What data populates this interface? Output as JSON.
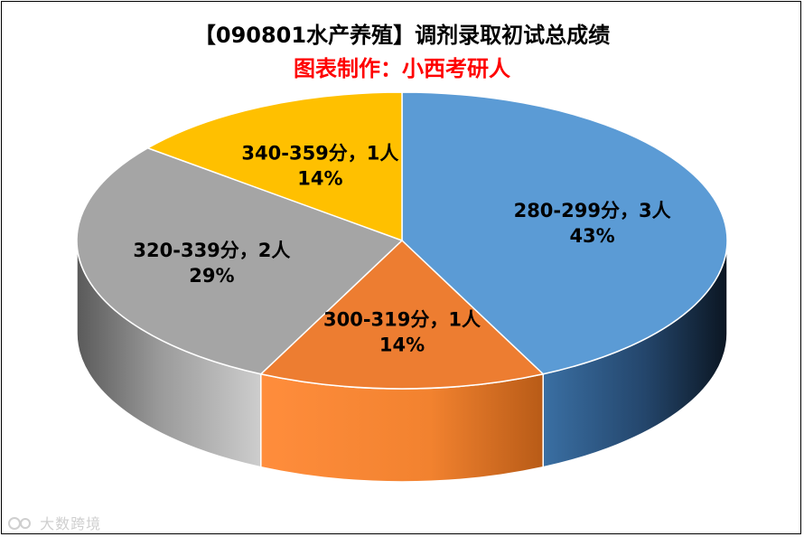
{
  "chart_data": {
    "type": "pie",
    "title": "【090801水产养殖】调剂录取初试总成绩",
    "subtitle": "图表制作：小西考研人",
    "categories": [
      "280-299分",
      "300-319分",
      "320-339分",
      "340-359分"
    ],
    "values": [
      3,
      1,
      2,
      1
    ],
    "percent_labels": [
      "43%",
      "14%",
      "29%",
      "14%"
    ],
    "data_labels": [
      "280-299分，3人",
      "300-319分，1人",
      "320-339分，2人",
      "340-359分，1人"
    ],
    "colors": [
      "#5b9bd5",
      "#ed7d31",
      "#a5a5a5",
      "#ffc000"
    ],
    "style": "3d",
    "legend": "none"
  },
  "watermark": {
    "text": "大数跨境",
    "logo_icon": "circular-logo-icon"
  }
}
